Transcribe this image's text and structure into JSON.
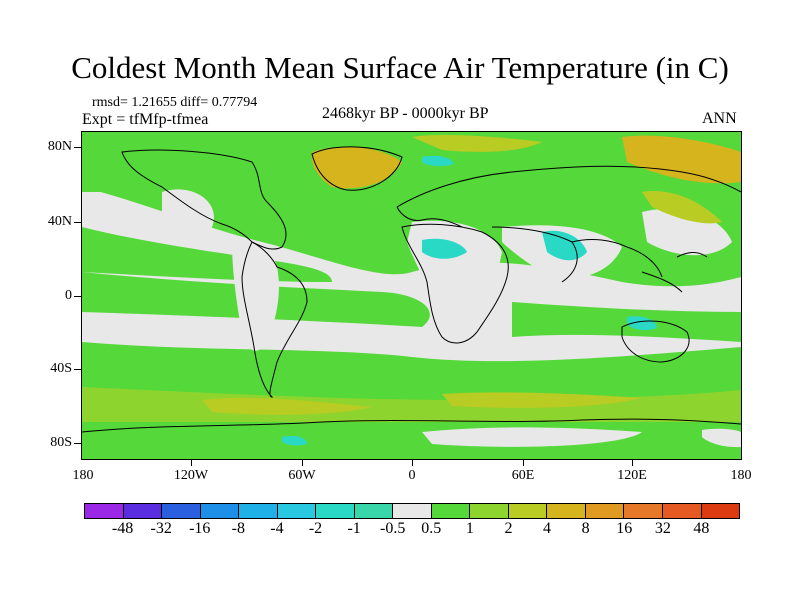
{
  "title": "Coldest Month Mean Surface Air Temperature (in C)",
  "stats": "rmsd= 1.21655  diff= 0.77794",
  "experiment": "Expt = tfMfp-tfmea",
  "period": "2468kyr BP - 0000kyr BP",
  "season": "ANN",
  "lat_labels": [
    "80N",
    "40N",
    "0",
    "40S",
    "80S"
  ],
  "lon_labels": [
    "180",
    "120W",
    "60W",
    "0",
    "60E",
    "120E",
    "180"
  ],
  "colorbar": {
    "labels": [
      "-48",
      "-32",
      "-16",
      "-8",
      "-4",
      "-2",
      "-1",
      "-0.5",
      "0.5",
      "1",
      "2",
      "4",
      "8",
      "16",
      "32",
      "48"
    ],
    "colors": [
      "#9a28e6",
      "#5a2ee0",
      "#2a5fe0",
      "#1e8fe8",
      "#1fb0e8",
      "#27c8e0",
      "#2ad8c6",
      "#38d6a8",
      "#e8e8e8",
      "#55d83a",
      "#8ed42e",
      "#b8cc24",
      "#d6b41e",
      "#e09a22",
      "#e6782a",
      "#e45a22",
      "#dc3a10"
    ]
  },
  "colors": {
    "map_background": "#e8e8e8",
    "positive_small": "#55d83a",
    "positive_mid": "#8ed42e",
    "positive_high": "#d6b41e",
    "negative_small": "#2ad8c6",
    "coastline": "#000000"
  }
}
